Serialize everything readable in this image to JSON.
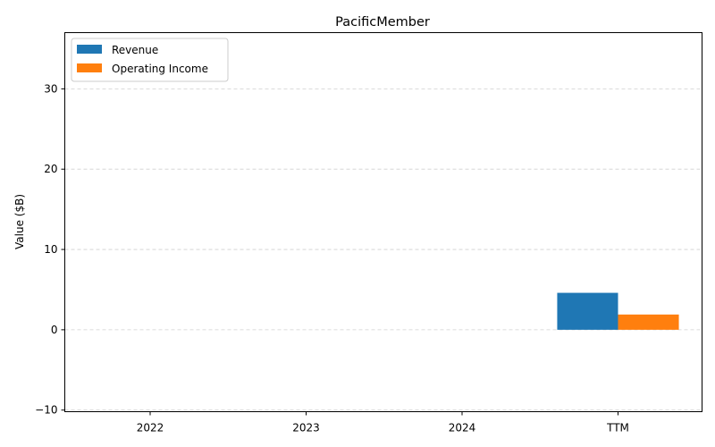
{
  "chart_data": {
    "type": "bar",
    "title": "PacificMember",
    "xlabel": "",
    "ylabel": "Value ($B)",
    "categories": [
      "2022",
      "2023",
      "2024",
      "TTM"
    ],
    "series": [
      {
        "name": "Revenue",
        "color": "#1f77b4",
        "values": [
          null,
          null,
          null,
          4.6
        ]
      },
      {
        "name": "Operating Income",
        "color": "#ff7f0e",
        "values": [
          null,
          null,
          null,
          1.9
        ]
      }
    ],
    "ylim": [
      -10.2,
      37
    ],
    "yticks": [
      -10,
      0,
      10,
      20,
      30
    ],
    "grid": "y-dashed",
    "legend_position": "top-left"
  }
}
